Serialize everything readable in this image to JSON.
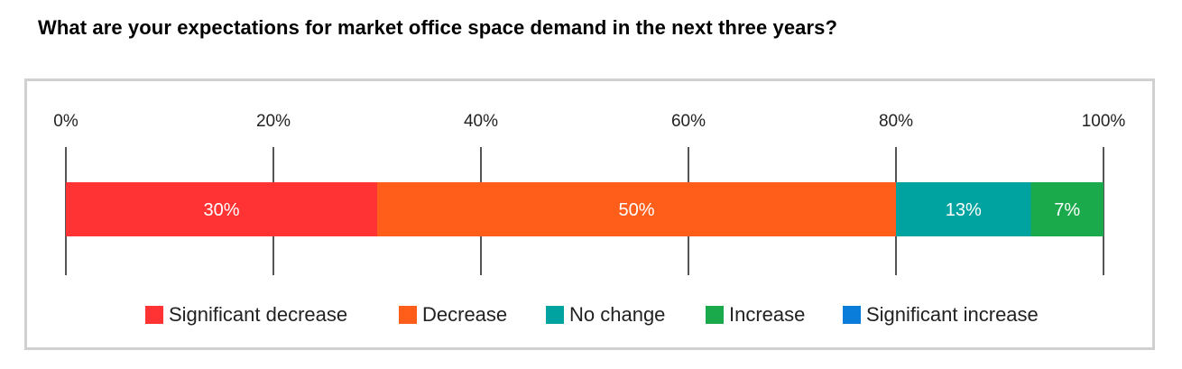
{
  "chart_data": {
    "type": "bar",
    "orientation": "horizontal",
    "stacked": true,
    "title": "What are your expectations for market office space demand in the next three years?",
    "xlim": [
      0,
      100
    ],
    "x_ticks": [
      "0%",
      "20%",
      "40%",
      "60%",
      "80%",
      "100%"
    ],
    "x_tick_values": [
      0,
      20,
      40,
      60,
      80,
      100
    ],
    "legend_position": "bottom",
    "series": [
      {
        "name": "Significant decrease",
        "value": 30,
        "label": "30%",
        "color": "#ff3333"
      },
      {
        "name": "Decrease",
        "value": 50,
        "label": "50%",
        "color": "#ff5e1a"
      },
      {
        "name": "No change",
        "value": 13,
        "label": "13%",
        "color": "#00a3a0"
      },
      {
        "name": "Increase",
        "value": 7,
        "label": "7%",
        "color": "#1aaa4b"
      },
      {
        "name": "Significant increase",
        "value": 0,
        "label": "",
        "color": "#0a7ddb"
      }
    ]
  }
}
